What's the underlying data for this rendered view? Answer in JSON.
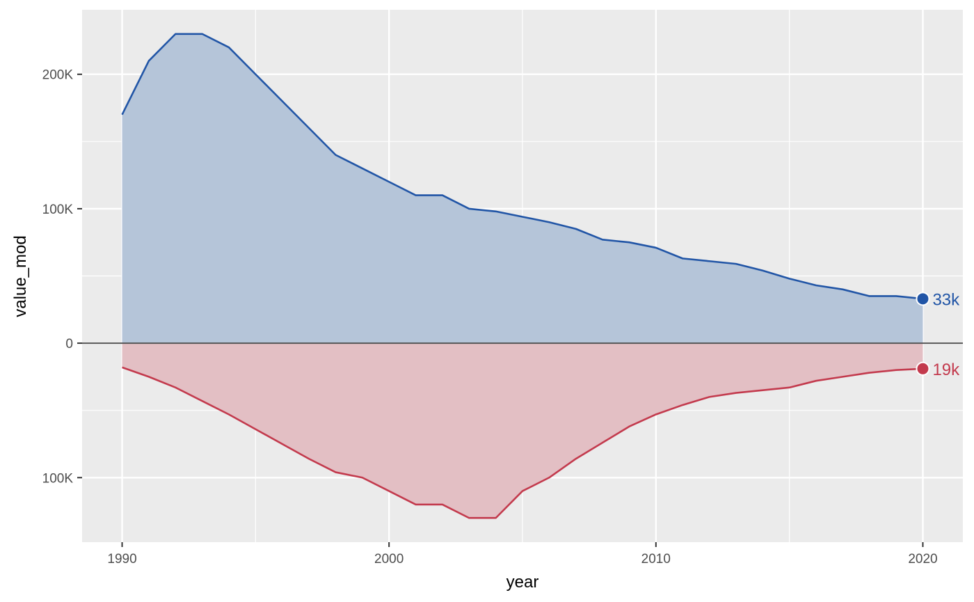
{
  "chart_data": {
    "type": "area",
    "title": "",
    "xlabel": "year",
    "ylabel": "value_mod",
    "xlim": [
      1988.5,
      2021.5
    ],
    "ylim": [
      -148000,
      248000
    ],
    "x_ticks": [
      1990,
      2000,
      2010,
      2020
    ],
    "y_ticks": [
      {
        "value": 200000,
        "label": "200K"
      },
      {
        "value": 100000,
        "label": "100K"
      },
      {
        "value": 0,
        "label": "0"
      },
      {
        "value": -100000,
        "label": "100K"
      }
    ],
    "grid": true,
    "legend": "none",
    "x": [
      1990,
      1991,
      1992,
      1993,
      1994,
      1995,
      1996,
      1997,
      1998,
      1999,
      2000,
      2001,
      2002,
      2003,
      2004,
      2005,
      2006,
      2007,
      2008,
      2009,
      2010,
      2011,
      2012,
      2013,
      2014,
      2015,
      2016,
      2017,
      2018,
      2019,
      2020
    ],
    "series": [
      {
        "color": "#2155a6",
        "fill": "#b5c5d9",
        "values": [
          170000,
          210000,
          230000,
          230000,
          220000,
          200000,
          180000,
          160000,
          140000,
          130000,
          120000,
          110000,
          110000,
          100000,
          98000,
          94000,
          90000,
          85000,
          77000,
          75000,
          71000,
          63000,
          61000,
          59000,
          54000,
          48000,
          43000,
          40000,
          35000,
          35000,
          33000
        ],
        "end_label": "33k"
      },
      {
        "color": "#c33a4d",
        "fill": "#e3bfc4",
        "values": [
          -18000,
          -25000,
          -33000,
          -43000,
          -53000,
          -64000,
          -75000,
          -86000,
          -96000,
          -100000,
          -110000,
          -120000,
          -120000,
          -130000,
          -130000,
          -110000,
          -100000,
          -86000,
          -74000,
          -62000,
          -53000,
          -46000,
          -40000,
          -37000,
          -35000,
          -33000,
          -28000,
          -25000,
          -22000,
          -20000,
          -19000
        ],
        "end_label": "19k"
      }
    ]
  }
}
